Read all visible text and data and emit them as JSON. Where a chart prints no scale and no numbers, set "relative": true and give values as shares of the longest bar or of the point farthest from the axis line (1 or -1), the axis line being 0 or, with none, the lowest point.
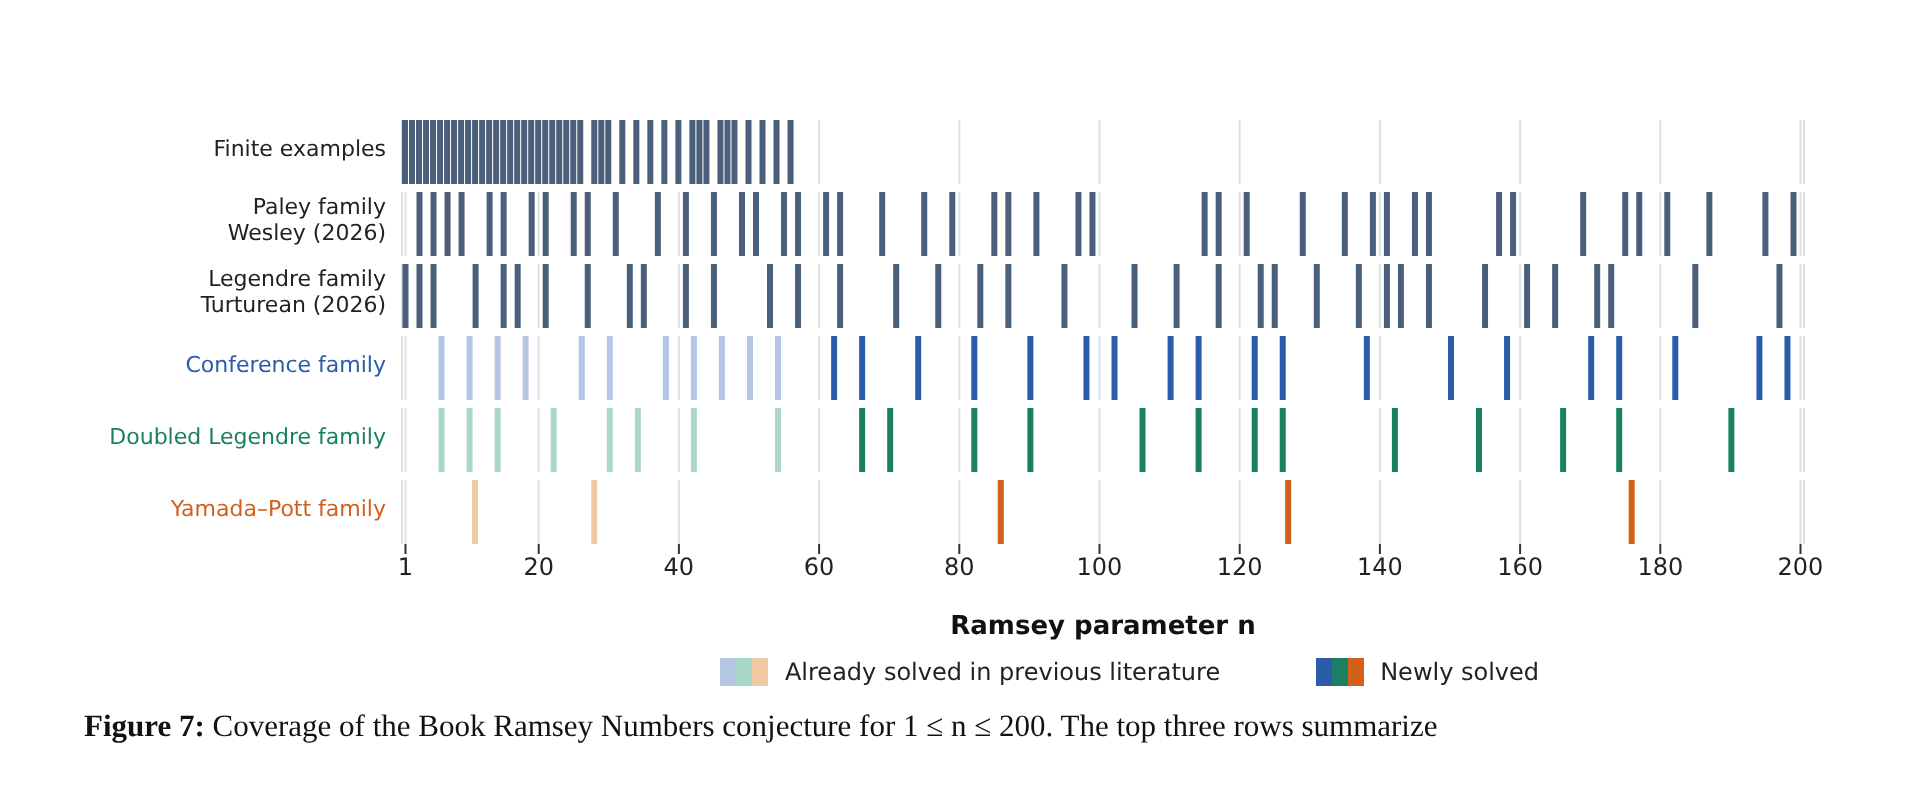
{
  "chart_data": [
    {
      "type": "bar",
      "relative": true,
      "title": "Finite examples",
      "xlim": [
        0.5,
        200.5
      ],
      "xticks": [
        1,
        20,
        40,
        60,
        80,
        100,
        120,
        140,
        160,
        180,
        200
      ],
      "tick_labels": false,
      "grid": "x",
      "x": [
        1,
        2,
        3,
        4,
        5,
        6,
        7,
        8,
        9,
        10,
        11,
        12,
        13,
        14,
        15,
        16,
        17,
        18,
        19,
        20,
        21,
        22,
        23,
        24,
        25,
        26,
        28,
        29,
        30,
        32,
        34,
        36,
        38,
        40,
        42,
        43,
        44,
        46,
        47,
        48,
        50,
        52,
        54,
        56
      ],
      "values": [
        1,
        1,
        1,
        1,
        1,
        1,
        1,
        1,
        1,
        1,
        1,
        1,
        1,
        1,
        1,
        1,
        1,
        1,
        1,
        1,
        1,
        1,
        1,
        1,
        1,
        1,
        1,
        1,
        1,
        1,
        1,
        1,
        1,
        1,
        1,
        1,
        1,
        1,
        1,
        1,
        1,
        1,
        1,
        1
      ],
      "color": "#4c5f7a"
    },
    {
      "type": "bar",
      "relative": true,
      "title": "Paley family\nWesley (2026)",
      "xlim": [
        0.5,
        200.5
      ],
      "xticks": [
        1,
        20,
        40,
        60,
        80,
        100,
        120,
        140,
        160,
        180,
        200
      ],
      "tick_labels": false,
      "grid": "x",
      "x": [
        3,
        5,
        7,
        9,
        13,
        15,
        19,
        21,
        25,
        27,
        31,
        37,
        41,
        45,
        49,
        51,
        55,
        57,
        61,
        63,
        69,
        75,
        79,
        85,
        87,
        91,
        97,
        99,
        115,
        117,
        121,
        129,
        135,
        139,
        141,
        145,
        147,
        157,
        159,
        169,
        175,
        177,
        181,
        187,
        195,
        199
      ],
      "values": [
        1,
        1,
        1,
        1,
        1,
        1,
        1,
        1,
        1,
        1,
        1,
        1,
        1,
        1,
        1,
        1,
        1,
        1,
        1,
        1,
        1,
        1,
        1,
        1,
        1,
        1,
        1,
        1,
        1,
        1,
        1,
        1,
        1,
        1,
        1,
        1,
        1,
        1,
        1,
        1,
        1,
        1,
        1,
        1,
        1,
        1
      ],
      "color": "#4c5f7a"
    },
    {
      "type": "bar",
      "relative": true,
      "title": "Legendre family\nTurturean (2026)",
      "xlim": [
        0.5,
        200.5
      ],
      "xticks": [
        1,
        20,
        40,
        60,
        80,
        100,
        120,
        140,
        160,
        180,
        200
      ],
      "tick_labels": false,
      "grid": "x",
      "x": [
        1,
        3,
        5,
        11,
        15,
        17,
        21,
        27,
        33,
        35,
        41,
        45,
        53,
        57,
        63,
        71,
        77,
        83,
        87,
        95,
        105,
        111,
        117,
        123,
        125,
        131,
        137,
        141,
        143,
        147,
        155,
        161,
        165,
        171,
        173,
        185,
        197
      ],
      "values": [
        1,
        1,
        1,
        1,
        1,
        1,
        1,
        1,
        1,
        1,
        1,
        1,
        1,
        1,
        1,
        1,
        1,
        1,
        1,
        1,
        1,
        1,
        1,
        1,
        1,
        1,
        1,
        1,
        1,
        1,
        1,
        1,
        1,
        1,
        1,
        1,
        1
      ],
      "color": "#4c5f7a"
    },
    {
      "type": "bar",
      "relative": true,
      "title": "Conference family",
      "xlim": [
        0.5,
        200.5
      ],
      "xticks": [
        1,
        20,
        40,
        60,
        80,
        100,
        120,
        140,
        160,
        180,
        200
      ],
      "tick_labels": false,
      "grid": "x",
      "series": [
        {
          "color": "#b6c5e4",
          "x": [
            6,
            10,
            14,
            18,
            26,
            30,
            38,
            42,
            46,
            50,
            54
          ],
          "values": [
            1,
            1,
            1,
            1,
            1,
            1,
            1,
            1,
            1,
            1,
            1
          ]
        },
        {
          "color": "#2a5caa",
          "x": [
            62,
            66,
            74,
            82,
            90,
            98,
            102,
            110,
            114,
            122,
            126,
            138,
            150,
            158,
            170,
            174,
            182,
            194,
            198
          ],
          "values": [
            1,
            1,
            1,
            1,
            1,
            1,
            1,
            1,
            1,
            1,
            1,
            1,
            1,
            1,
            1,
            1,
            1,
            1,
            1
          ]
        }
      ]
    },
    {
      "type": "bar",
      "relative": true,
      "title": "Doubled Legendre family",
      "xlim": [
        0.5,
        200.5
      ],
      "xticks": [
        1,
        20,
        40,
        60,
        80,
        100,
        120,
        140,
        160,
        180,
        200
      ],
      "tick_labels": false,
      "grid": "x",
      "series": [
        {
          "color": "#a9d8c6",
          "x": [
            6,
            10,
            14,
            22,
            30,
            34,
            42,
            54
          ],
          "values": [
            1,
            1,
            1,
            1,
            1,
            1,
            1,
            1
          ]
        },
        {
          "color": "#1a7f63",
          "x": [
            66,
            70,
            82,
            90,
            106,
            114,
            122,
            126,
            142,
            154,
            166,
            174,
            190
          ],
          "values": [
            1,
            1,
            1,
            1,
            1,
            1,
            1,
            1,
            1,
            1,
            1,
            1,
            1
          ]
        }
      ]
    },
    {
      "type": "bar",
      "relative": true,
      "title": "Yamada–Pott family",
      "xlabel": "Ramsey parameter n",
      "xlim": [
        0.5,
        200.5
      ],
      "xticks": [
        1,
        20,
        40,
        60,
        80,
        100,
        120,
        140,
        160,
        180,
        200
      ],
      "tick_labels": "x",
      "grid": "x",
      "legend": "bottom",
      "series": [
        {
          "name": "Already solved in previous literature",
          "color": "#f0c9a4",
          "x": [
            11,
            28
          ],
          "values": [
            1,
            1
          ]
        },
        {
          "name": "Newly solved",
          "color": "#d2601a",
          "x": [
            86,
            127,
            176
          ],
          "values": [
            1,
            1,
            1
          ]
        }
      ],
      "annotations": [
        "Figure 7: Coverage of the Book Ramsey Numbers conjecture for 1 ≤ n ≤ 200. The top three rows summarize"
      ]
    }
  ]
}
